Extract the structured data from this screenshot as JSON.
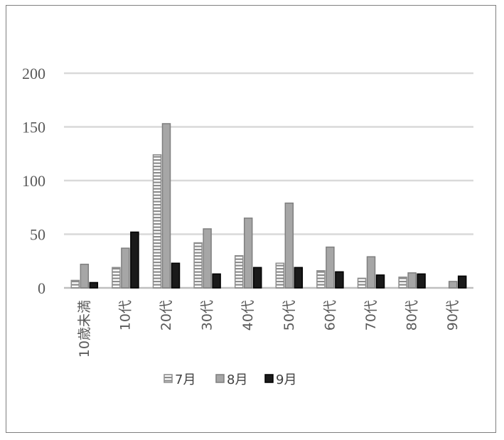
{
  "chart_data": {
    "type": "bar",
    "categories": [
      "10歳未満",
      "10代",
      "20代",
      "30代",
      "40代",
      "50代",
      "60代",
      "70代",
      "80代",
      "90代"
    ],
    "series": [
      {
        "name": "7月",
        "values": [
          7,
          19,
          124,
          42,
          30,
          23,
          16,
          9,
          10,
          0
        ],
        "color": "#ffffff",
        "stroke": "#8c8c8c",
        "pattern": "horizontal-stripes"
      },
      {
        "name": "8月",
        "values": [
          22,
          37,
          153,
          55,
          65,
          79,
          38,
          29,
          14,
          6
        ],
        "color": "#a6a6a6",
        "stroke": "#7f7f7f",
        "pattern": "solid"
      },
      {
        "name": "9月",
        "values": [
          5,
          52,
          23,
          13,
          19,
          19,
          15,
          12,
          13,
          11
        ],
        "color": "#1a1a1a",
        "stroke": "#000000",
        "pattern": "solid"
      }
    ],
    "yticks": [
      "0",
      "50",
      "100",
      "150",
      "200"
    ],
    "ylim": [
      0,
      200
    ],
    "grid": true,
    "legend": "bottom"
  }
}
